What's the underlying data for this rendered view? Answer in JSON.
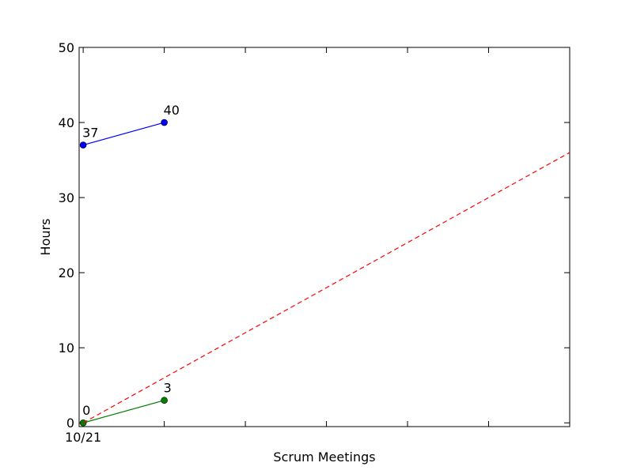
{
  "chart_data": {
    "type": "line",
    "title": "",
    "xlabel": "Scrum Meetings",
    "ylabel": "Hours",
    "xlim": [
      -0.05,
      6.0
    ],
    "ylim": [
      -0.5,
      50
    ],
    "x_ticks": [
      0,
      1,
      2,
      3,
      4,
      5,
      6
    ],
    "x_tick_labels": [
      "10/21",
      "",
      "",
      "",
      "",
      "",
      ""
    ],
    "y_ticks": [
      0,
      10,
      20,
      30,
      40,
      50
    ],
    "y_tick_labels": [
      "0",
      "10",
      "20",
      "30",
      "40",
      "50"
    ],
    "grid": false,
    "legend": "none",
    "series": [
      {
        "color": "#0000ff",
        "style": "solid",
        "marker": "circle",
        "x": [
          0,
          1
        ],
        "y": [
          37,
          40
        ],
        "labels": [
          "37",
          "40"
        ]
      },
      {
        "color": "#007f00",
        "style": "solid",
        "marker": "circle",
        "x": [
          0,
          1
        ],
        "y": [
          0,
          3
        ],
        "labels": [
          "0",
          "3"
        ]
      },
      {
        "color": "#ff0000",
        "style": "dashed",
        "marker": "none",
        "x": [
          0,
          6
        ],
        "y": [
          0,
          36
        ],
        "labels": []
      }
    ]
  }
}
